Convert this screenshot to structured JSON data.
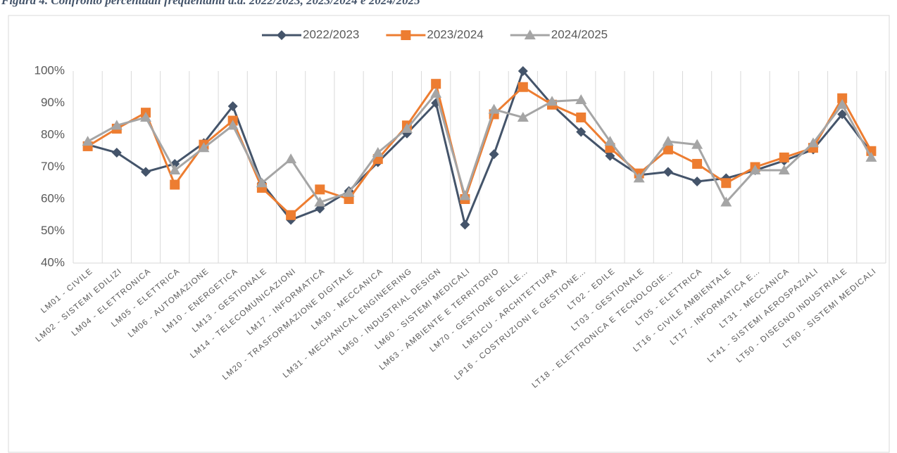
{
  "chart_data": {
    "type": "line",
    "title": "Figura 4. Confronto percentuali frequentanti a.a. 2022/2023, 2023/2024 e 2024/2025",
    "categories": [
      "LM01 - CIVILE",
      "LM02 - SISTEMI EDILIZI",
      "LM04 - ELETTRONICA",
      "LM05 - ELETTRICA",
      "LM06 - AUTOMAZIONE",
      "LM10 - ENERGETICA",
      "LM13 - GESTIONALE",
      "LM14 - TELECOMUNICAZIONI",
      "LM17 - INFORMATICA",
      "LM20 - TRASFORMAZIONE DIGITALE",
      "LM30 - MECCANICA",
      "LM31 - MECHANICAL ENGINEERING",
      "LM50 - INDUSTRIAL DESIGN",
      "LM60 - SISTEMI MEDICALI",
      "LM63 - AMBIENTE E TERRITORIO",
      "LM70 - GESTIONE DELLE…",
      "LM51CU - ARCHITETTURA",
      "LP16 - COSTRUZIONI E GESTIONE…",
      "LT02 - EDILE",
      "LT03 - GESTIONALE",
      "LT18 - ELETTRONICA E TECNOLOGIE…",
      "LT05 - ELETTRICA",
      "LT16 - CIVILE AMBIENTALE",
      "LT17 - INFORMATICA E…",
      "LT31 - MECCANICA",
      "LT41 - SISTEMI AEROSPAZIALI",
      "LT50 - DISEGNO INDUSTRIALE",
      "LT60 - SISTEMI MEDICALI"
    ],
    "series": [
      {
        "name": "2022/2023",
        "color": "#44546a",
        "marker": "diamond",
        "values": [
          77,
          74.5,
          68.5,
          71,
          77.5,
          89,
          65,
          53.5,
          57,
          62.5,
          71.5,
          80.5,
          90,
          52,
          74,
          100,
          89.5,
          81,
          73.5,
          67.5,
          68.5,
          65.5,
          66.5,
          69,
          72,
          75.5,
          86.5,
          74.5
        ]
      },
      {
        "name": "2023/2024",
        "color": "#ed7d31",
        "marker": "square",
        "values": [
          76.5,
          82,
          87,
          64.5,
          77,
          84.5,
          63.5,
          55,
          63,
          60,
          72.5,
          83,
          96,
          60,
          86.5,
          95,
          89.5,
          85.5,
          76,
          68,
          75.5,
          71,
          65,
          70,
          73,
          76,
          91.5,
          75
        ]
      },
      {
        "name": "2024/2025",
        "color": "#a5a5a5",
        "marker": "triangle",
        "values": [
          78,
          83,
          85.5,
          69,
          76,
          83,
          65,
          72.5,
          59,
          62,
          74.5,
          82,
          93,
          61,
          88,
          85.5,
          90.5,
          91,
          78,
          66.5,
          78,
          77,
          59,
          69,
          69,
          77.5,
          89.5,
          73
        ]
      }
    ],
    "ylim": [
      40,
      100
    ],
    "yticks": [
      {
        "value": 40,
        "label": "40%"
      },
      {
        "value": 50,
        "label": "50%"
      },
      {
        "value": 60,
        "label": "60%"
      },
      {
        "value": 70,
        "label": "70%"
      },
      {
        "value": 80,
        "label": "80%"
      },
      {
        "value": 90,
        "label": "90%"
      },
      {
        "value": 100,
        "label": "100%"
      }
    ],
    "legend": "top"
  }
}
